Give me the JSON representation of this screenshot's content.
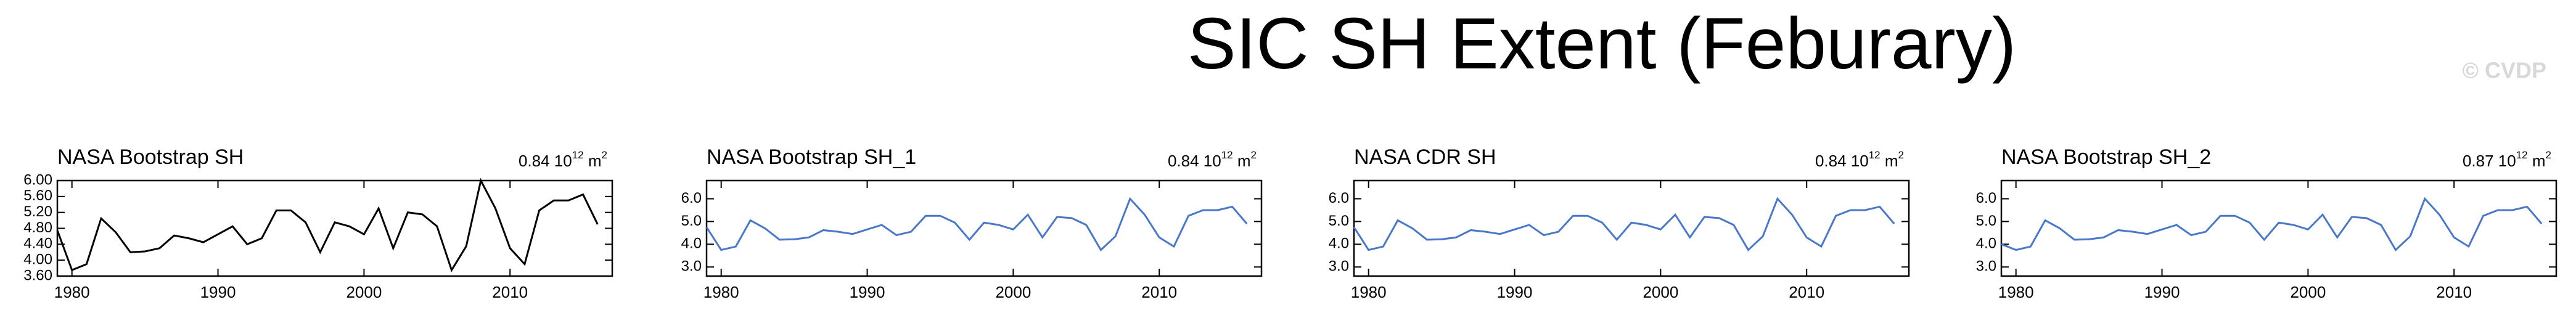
{
  "title": "SIC SH Extent (Feburary)",
  "watermark": "© CVDP",
  "chart_data": [
    {
      "type": "line",
      "title": "NASA Bootstrap SH",
      "annotation": [
        "0.84 10",
        "12",
        " m",
        "2"
      ],
      "x": [
        1979,
        1980,
        1981,
        1982,
        1983,
        1984,
        1985,
        1986,
        1987,
        1988,
        1989,
        1990,
        1991,
        1992,
        1993,
        1994,
        1995,
        1996,
        1997,
        1998,
        1999,
        2000,
        2001,
        2002,
        2003,
        2004,
        2005,
        2006,
        2007,
        2008,
        2009,
        2010,
        2011,
        2012,
        2013,
        2014,
        2015,
        2016
      ],
      "values": [
        4.75,
        3.75,
        3.9,
        5.05,
        4.7,
        4.2,
        4.22,
        4.3,
        4.62,
        4.55,
        4.45,
        4.65,
        4.85,
        4.4,
        4.55,
        5.25,
        5.25,
        4.95,
        4.2,
        4.95,
        4.85,
        4.65,
        5.3,
        4.3,
        5.2,
        5.15,
        4.85,
        3.75,
        4.35,
        6.0,
        5.3,
        4.3,
        3.9,
        5.25,
        5.5,
        5.5,
        5.65,
        4.9
      ],
      "color": "#000000",
      "xlim": [
        1979,
        2017
      ],
      "xticks": [
        1980,
        1990,
        2000,
        2010
      ],
      "ylim": [
        3.6,
        6.0
      ],
      "yticks": [
        {
          "value": 3.6,
          "label": "3.60"
        },
        {
          "value": 4.0,
          "label": "4.00"
        },
        {
          "value": 4.4,
          "label": "4.40"
        },
        {
          "value": 4.8,
          "label": "4.80"
        },
        {
          "value": 5.2,
          "label": "5.20"
        },
        {
          "value": 5.6,
          "label": "5.60"
        },
        {
          "value": 6.0,
          "label": "6.00"
        }
      ]
    },
    {
      "type": "line",
      "title": "NASA Bootstrap SH_1",
      "annotation": [
        "0.84 10",
        "12",
        " m",
        "2"
      ],
      "x": [
        1979,
        1980,
        1981,
        1982,
        1983,
        1984,
        1985,
        1986,
        1987,
        1988,
        1989,
        1990,
        1991,
        1992,
        1993,
        1994,
        1995,
        1996,
        1997,
        1998,
        1999,
        2000,
        2001,
        2002,
        2003,
        2004,
        2005,
        2006,
        2007,
        2008,
        2009,
        2010,
        2011,
        2012,
        2013,
        2014,
        2015,
        2016
      ],
      "values": [
        4.75,
        3.75,
        3.9,
        5.05,
        4.7,
        4.2,
        4.22,
        4.3,
        4.62,
        4.55,
        4.45,
        4.65,
        4.85,
        4.4,
        4.55,
        5.25,
        5.25,
        4.95,
        4.2,
        4.95,
        4.85,
        4.65,
        5.3,
        4.3,
        5.2,
        5.15,
        4.85,
        3.75,
        4.35,
        6.0,
        5.3,
        4.3,
        3.9,
        5.25,
        5.5,
        5.5,
        5.65,
        4.9
      ],
      "color": "#4a78c8",
      "xlim": [
        1979,
        2017
      ],
      "xticks": [
        1980,
        1990,
        2000,
        2010
      ],
      "ylim": [
        2.6,
        6.8
      ],
      "yticks": [
        {
          "value": 3,
          "label": "3.0"
        },
        {
          "value": 4,
          "label": "4.0"
        },
        {
          "value": 5,
          "label": "5.0"
        },
        {
          "value": 6,
          "label": "6.0"
        }
      ]
    },
    {
      "type": "line",
      "title": "NASA CDR SH",
      "annotation": [
        "0.84 10",
        "12",
        " m",
        "2"
      ],
      "x": [
        1979,
        1980,
        1981,
        1982,
        1983,
        1984,
        1985,
        1986,
        1987,
        1988,
        1989,
        1990,
        1991,
        1992,
        1993,
        1994,
        1995,
        1996,
        1997,
        1998,
        1999,
        2000,
        2001,
        2002,
        2003,
        2004,
        2005,
        2006,
        2007,
        2008,
        2009,
        2010,
        2011,
        2012,
        2013,
        2014,
        2015,
        2016
      ],
      "values": [
        4.75,
        3.75,
        3.9,
        5.05,
        4.7,
        4.2,
        4.22,
        4.3,
        4.62,
        4.55,
        4.45,
        4.65,
        4.85,
        4.4,
        4.55,
        5.25,
        5.25,
        4.95,
        4.2,
        4.95,
        4.85,
        4.65,
        5.3,
        4.3,
        5.2,
        5.15,
        4.85,
        3.75,
        4.35,
        6.0,
        5.3,
        4.3,
        3.9,
        5.25,
        5.5,
        5.5,
        5.65,
        4.9
      ],
      "color": "#4a78c8",
      "xlim": [
        1979,
        2017
      ],
      "xticks": [
        1980,
        1990,
        2000,
        2010
      ],
      "ylim": [
        2.6,
        6.8
      ],
      "yticks": [
        {
          "value": 3,
          "label": "3.0"
        },
        {
          "value": 4,
          "label": "4.0"
        },
        {
          "value": 5,
          "label": "5.0"
        },
        {
          "value": 6,
          "label": "6.0"
        }
      ]
    },
    {
      "type": "line",
      "title": "NASA Bootstrap SH_2",
      "annotation": [
        "0.87 10",
        "12",
        " m",
        "2"
      ],
      "x": [
        1979,
        1980,
        1981,
        1982,
        1983,
        1984,
        1985,
        1986,
        1987,
        1988,
        1989,
        1990,
        1991,
        1992,
        1993,
        1994,
        1995,
        1996,
        1997,
        1998,
        1999,
        2000,
        2001,
        2002,
        2003,
        2004,
        2005,
        2006,
        2007,
        2008,
        2009,
        2010,
        2011,
        2012,
        2013,
        2014,
        2015,
        2016
      ],
      "values": [
        4.0,
        3.75,
        3.9,
        5.05,
        4.7,
        4.2,
        4.22,
        4.3,
        4.62,
        4.55,
        4.45,
        4.65,
        4.85,
        4.4,
        4.55,
        5.25,
        5.25,
        4.95,
        4.2,
        4.95,
        4.85,
        4.65,
        5.3,
        4.3,
        5.2,
        5.15,
        4.85,
        3.75,
        4.35,
        6.0,
        5.3,
        4.3,
        3.9,
        5.25,
        5.5,
        5.5,
        5.65,
        4.9
      ],
      "color": "#4a78c8",
      "xlim": [
        1979,
        2017
      ],
      "xticks": [
        1980,
        1990,
        2000,
        2010
      ],
      "ylim": [
        2.6,
        6.8
      ],
      "yticks": [
        {
          "value": 3,
          "label": "3.0"
        },
        {
          "value": 4,
          "label": "4.0"
        },
        {
          "value": 5,
          "label": "5.0"
        },
        {
          "value": 6,
          "label": "6.0"
        }
      ]
    }
  ]
}
